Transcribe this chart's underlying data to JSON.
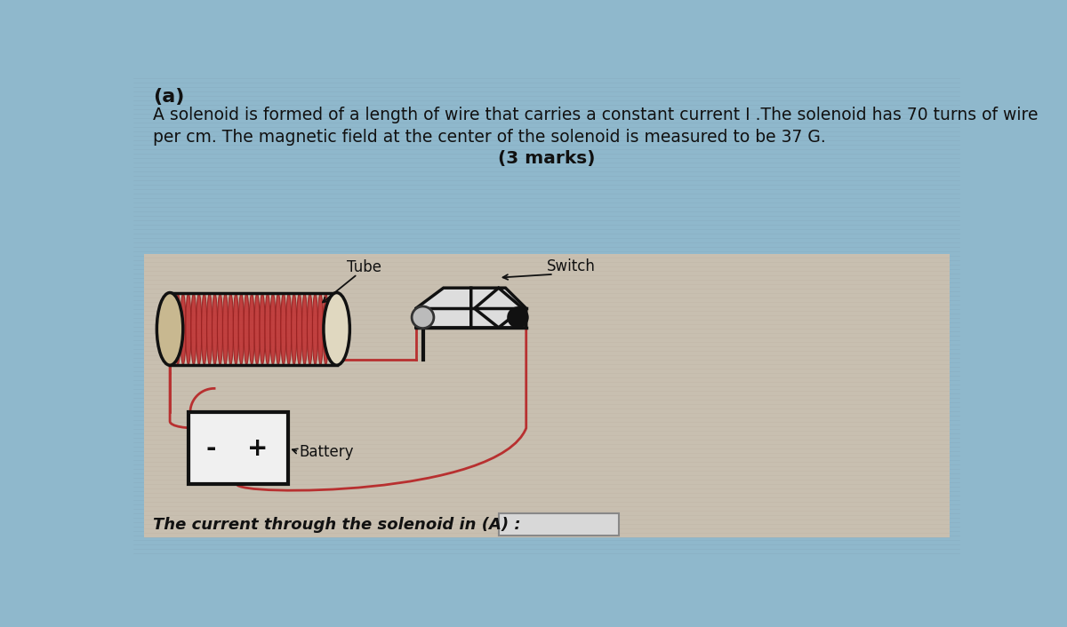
{
  "part_label": "(a)",
  "line1": "A solenoid is formed of a length of wire that carries a constant current I .The solenoid has 70 turns of wire",
  "line2": "per cm. The magnetic field at the center of the solenoid is measured to be 37 G.",
  "marks": "(3 marks)",
  "tube_label": "Tube",
  "switch_label": "Switch",
  "battery_label": "Battery",
  "answer_text": "The current through the solenoid in (A) :",
  "bg_top_color": "#8fb8cc",
  "diagram_bg": "#c8bfb0",
  "wire_color": "#b83030",
  "coil_color": "#c03535",
  "coil_edge": "#992222",
  "end_cap_color": "#e0d8c8",
  "battery_fill": "#f0f0f0",
  "switch_fill": "#dddddd",
  "text_dark": "#111111",
  "answer_box_fill": "#d8d8d8",
  "grid_h_color": "#7a9aaa",
  "grid_h2_color": "#b8a898"
}
